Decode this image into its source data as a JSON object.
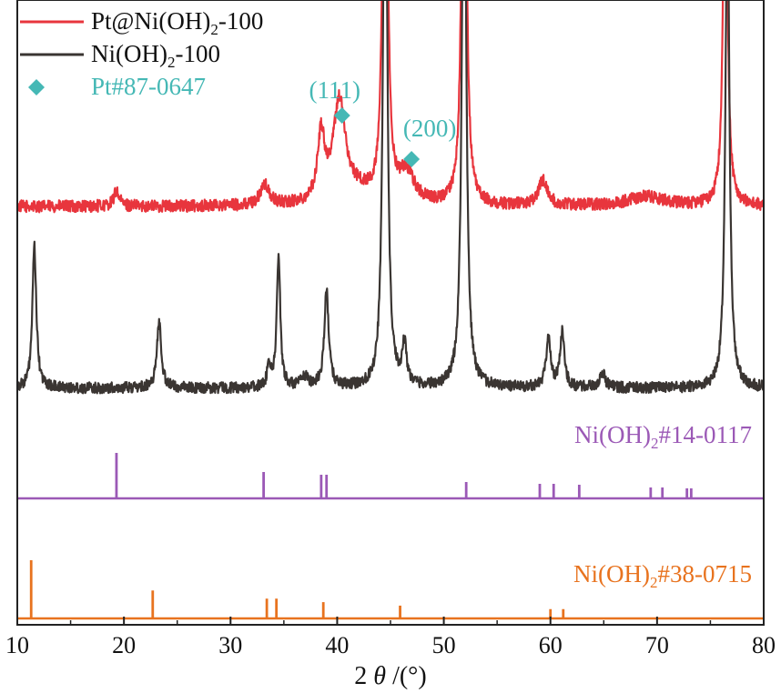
{
  "chart_data": {
    "type": "line",
    "xlabel_prefix": "2 ",
    "xlabel_theta": "θ",
    "xlabel_suffix": " /(°)",
    "xlim": [
      10,
      80
    ],
    "xticks": [
      10,
      20,
      30,
      40,
      50,
      60,
      70,
      80
    ],
    "series": [
      {
        "name": "Pt@Ni(OH)₂-100",
        "color": "#e8353d",
        "baseline": 0.78,
        "noise": 0.012,
        "peaks": [
          {
            "x": 19.3,
            "h": 0.03,
            "w": 0.3
          },
          {
            "x": 33.2,
            "h": 0.04,
            "w": 0.5
          },
          {
            "x": 38.5,
            "h": 0.13,
            "w": 0.4
          },
          {
            "x": 40.2,
            "h": 0.2,
            "w": 0.7
          },
          {
            "x": 42.0,
            "h": 0.02,
            "w": 1.5
          },
          {
            "x": 44.5,
            "h": 1.2,
            "w": 0.22
          },
          {
            "x": 46.5,
            "h": 0.06,
            "w": 0.9
          },
          {
            "x": 51.9,
            "h": 1.2,
            "w": 0.22
          },
          {
            "x": 59.3,
            "h": 0.05,
            "w": 0.5
          },
          {
            "x": 69.0,
            "h": 0.02,
            "w": 2.0
          },
          {
            "x": 76.4,
            "h": 0.85,
            "w": 0.22
          }
        ]
      },
      {
        "name": "Ni(OH)₂-100",
        "color": "#3a3532",
        "baseline": 0.42,
        "noise": 0.011,
        "peaks": [
          {
            "x": 11.6,
            "h": 0.28,
            "w": 0.22
          },
          {
            "x": 23.3,
            "h": 0.13,
            "w": 0.25
          },
          {
            "x": 33.6,
            "h": 0.04,
            "w": 0.2
          },
          {
            "x": 34.5,
            "h": 0.26,
            "w": 0.2
          },
          {
            "x": 37.0,
            "h": 0.02,
            "w": 0.4
          },
          {
            "x": 39.0,
            "h": 0.19,
            "w": 0.25
          },
          {
            "x": 44.5,
            "h": 1.3,
            "w": 0.22
          },
          {
            "x": 46.3,
            "h": 0.08,
            "w": 0.25
          },
          {
            "x": 51.9,
            "h": 1.3,
            "w": 0.22
          },
          {
            "x": 59.8,
            "h": 0.1,
            "w": 0.25
          },
          {
            "x": 61.1,
            "h": 0.11,
            "w": 0.25
          },
          {
            "x": 64.9,
            "h": 0.03,
            "w": 0.3
          },
          {
            "x": 76.6,
            "h": 1.0,
            "w": 0.22
          }
        ]
      }
    ],
    "markers": [
      {
        "name": "Pt#87-0647",
        "label": "(111)",
        "x": 40.2,
        "color": "#45b8b5"
      },
      {
        "name": "Pt#87-0647",
        "label": "(200)",
        "x": 46.8,
        "color": "#45b8b5"
      }
    ],
    "reference_patterns": [
      {
        "name": "Ni(OH)₂#14-0117",
        "label_main": "Ni(OH)",
        "label_sub": "2",
        "label_tail": "#14-0117",
        "color": "#9b59b6",
        "lines": [
          {
            "x": 19.3,
            "i": 100
          },
          {
            "x": 33.1,
            "i": 58
          },
          {
            "x": 38.5,
            "i": 52
          },
          {
            "x": 39.0,
            "i": 52
          },
          {
            "x": 52.1,
            "i": 36
          },
          {
            "x": 59.0,
            "i": 32
          },
          {
            "x": 60.3,
            "i": 32
          },
          {
            "x": 62.7,
            "i": 30
          },
          {
            "x": 69.4,
            "i": 24
          },
          {
            "x": 70.5,
            "i": 24
          },
          {
            "x": 72.8,
            "i": 22
          },
          {
            "x": 73.2,
            "i": 22
          }
        ]
      },
      {
        "name": "Ni(OH)₂#38-0715",
        "label_main": "Ni(OH)",
        "label_sub": "2",
        "label_tail": "#38-0715",
        "color": "#e8731f",
        "lines": [
          {
            "x": 11.3,
            "i": 100
          },
          {
            "x": 22.7,
            "i": 48
          },
          {
            "x": 33.4,
            "i": 34
          },
          {
            "x": 34.3,
            "i": 34
          },
          {
            "x": 38.7,
            "i": 28
          },
          {
            "x": 45.9,
            "i": 22
          },
          {
            "x": 60.0,
            "i": 16
          },
          {
            "x": 61.2,
            "i": 16
          }
        ]
      }
    ],
    "legend": {
      "placement": "top-left",
      "items": [
        {
          "type": "line",
          "main": "Pt@Ni(OH)",
          "sub": "2",
          "tail": "-100",
          "color": "#e8353d"
        },
        {
          "type": "line",
          "main": "Ni(OH)",
          "sub": "2",
          "tail": "-100",
          "color": "#3a3532"
        },
        {
          "type": "diamond",
          "main": "Pt#87-0647",
          "sub": "",
          "tail": "",
          "color": "#45b8b5"
        }
      ]
    }
  }
}
